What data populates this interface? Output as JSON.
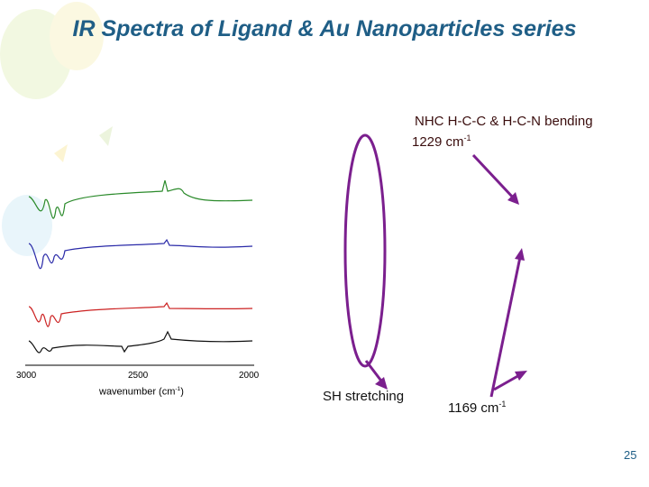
{
  "title": "IR Spectra of Ligand & Au Nanoparticles series",
  "figure": {
    "xticks": [
      "3000",
      "2500",
      "2000"
    ],
    "xlabel": {
      "text": "wavenumber (cm",
      "sup": "-1",
      "after": ")"
    }
  },
  "annotations": {
    "nhc": "NHC H-C-C & H-C-N bending",
    "peak_1229": {
      "text": "1229 cm",
      "sup": "-1"
    },
    "sh": "SH stretching",
    "peak_1169": {
      "text": "1169 cm",
      "sup": "-1"
    }
  },
  "page_number": "25"
}
